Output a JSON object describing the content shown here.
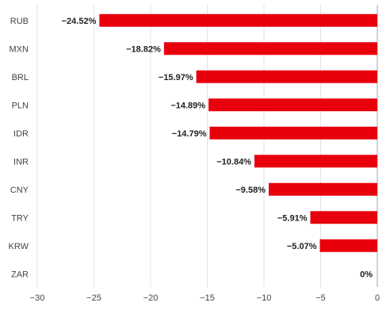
{
  "chart_data": {
    "type": "bar",
    "orientation": "horizontal",
    "categories": [
      "RUB",
      "MXN",
      "BRL",
      "PLN",
      "IDR",
      "INR",
      "CNY",
      "TRY",
      "KRW",
      "ZAR"
    ],
    "values": [
      -24.52,
      -18.82,
      -15.97,
      -14.89,
      -14.79,
      -10.84,
      -9.58,
      -5.91,
      -5.07,
      0
    ],
    "data_labels": [
      "−24.52%",
      "−18.82%",
      "−15.97%",
      "−14.89%",
      "−14.79%",
      "−10.84%",
      "−9.58%",
      "−5.91%",
      "−5.07%",
      "0%"
    ],
    "xlim": [
      -30,
      0
    ],
    "x_ticks": [
      -30,
      -25,
      -20,
      -15,
      -10,
      -5,
      0
    ],
    "x_tick_labels": [
      "−30",
      "−25",
      "−20",
      "−15",
      "−10",
      "−5",
      "0"
    ],
    "bar_color": "#e8000d",
    "grid": "vertical",
    "legend": "none"
  }
}
